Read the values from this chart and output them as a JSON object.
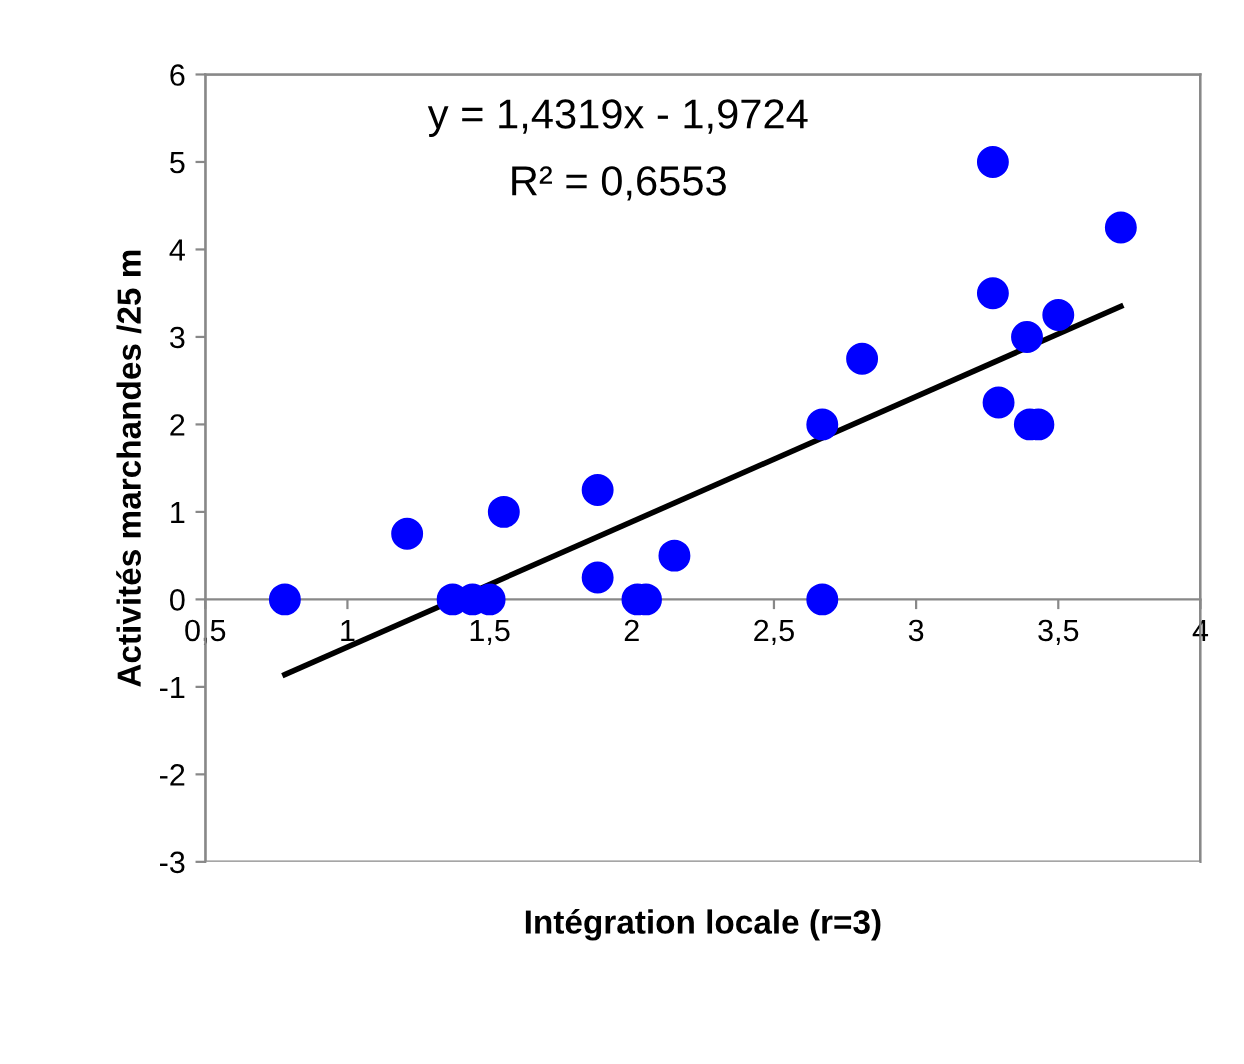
{
  "chart_data": {
    "type": "scatter",
    "xlabel": "Intégration locale (r=3)",
    "ylabel": "Activités marchandes /25 m",
    "annotations": [
      "y = 1,4319x - 1,9724",
      "R² = 0,6553"
    ],
    "xlim": [
      0.5,
      4
    ],
    "ylim": [
      -3,
      6
    ],
    "xticks": [
      {
        "value": 0.5,
        "label": "0,5"
      },
      1,
      {
        "value": 1.5,
        "label": "1,5"
      },
      2,
      {
        "value": 2.5,
        "label": "2,5"
      },
      3,
      {
        "value": 3.5,
        "label": "3,5"
      },
      4
    ],
    "yticks": [
      -3,
      -2,
      -1,
      0,
      1,
      2,
      3,
      4,
      5,
      6
    ],
    "grid": false,
    "legend": false,
    "series": [
      {
        "color": "#0000ff",
        "marker": "circle",
        "x": [
          0.78,
          1.21,
          1.37,
          1.44,
          1.5,
          1.55,
          1.88,
          1.88,
          2.02,
          2.05,
          2.15,
          2.67,
          2.67,
          2.81,
          3.27,
          3.27,
          3.29,
          3.39,
          3.4,
          3.43,
          3.5,
          3.72
        ],
        "values": [
          0,
          0.75,
          0,
          0,
          0,
          1,
          1.25,
          0.25,
          0,
          0,
          0.5,
          2,
          0,
          2.75,
          5,
          3.5,
          2.25,
          3,
          2,
          2,
          3.25,
          4.25
        ]
      },
      {
        "type": "line",
        "color": "#000000",
        "marker": "none",
        "line_style": "solid",
        "x": [
          0.78,
          3.72
        ],
        "values": [
          -0.86,
          3.35
        ]
      }
    ]
  }
}
